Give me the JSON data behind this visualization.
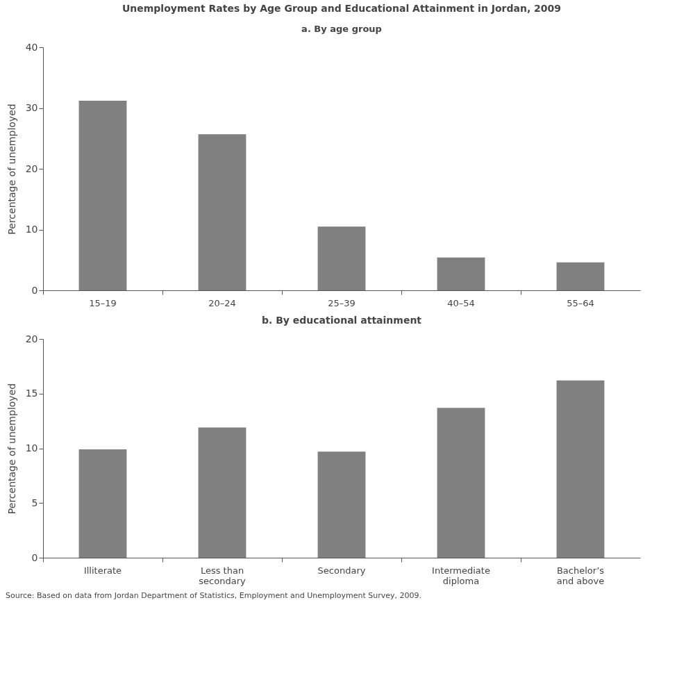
{
  "chart_data": [
    {
      "type": "bar",
      "title": "Unemployment Rates by Age Group and Educational Attainment in Jordan, 2009",
      "subtitle": "a. By age group",
      "ylabel": "Percentage of unemployed",
      "categories": [
        "15–19",
        "20–24",
        "25–39",
        "40–54",
        "55–64"
      ],
      "values": [
        31.2,
        25.7,
        10.5,
        5.4,
        4.6
      ],
      "color": "#808080",
      "ylim": [
        0,
        40
      ],
      "yticks": [
        0,
        10,
        20,
        30,
        40
      ]
    },
    {
      "type": "bar",
      "title": "b. By educational attainment",
      "ylabel": "Percentage of unemployed",
      "categories": [
        "Illiterate",
        "Less than\nsecondary",
        "Secondary",
        "Intermediate\ndiploma",
        "Bachelor’s\nand above"
      ],
      "values": [
        9.9,
        11.9,
        9.7,
        13.7,
        16.2
      ],
      "color": "#808080",
      "ylim": [
        0,
        20
      ],
      "yticks": [
        0,
        5,
        10,
        15,
        20
      ],
      "annotations": [
        "Source: Based on data from Jordan Department of Statistics, Employment and Unemployment Survey, 2009."
      ]
    }
  ]
}
